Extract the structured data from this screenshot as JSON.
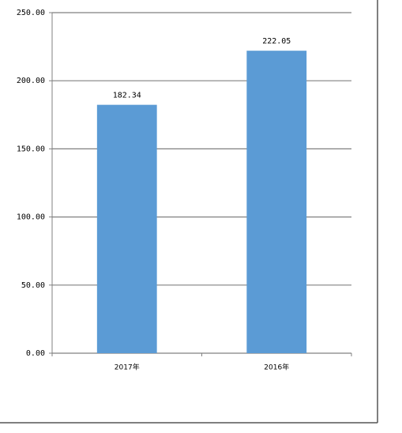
{
  "chart_data": {
    "type": "bar",
    "categories": [
      "2017年",
      "2016年"
    ],
    "values": [
      182.34,
      222.05
    ],
    "color": "#5b9bd5",
    "ylim": [
      0,
      250
    ],
    "yticks": [
      {
        "value": 0,
        "label": "0.00"
      },
      {
        "value": 50,
        "label": "50.00"
      },
      {
        "value": 100,
        "label": "100.00"
      },
      {
        "value": 150,
        "label": "150.00"
      },
      {
        "value": 200,
        "label": "200.00"
      },
      {
        "value": 250,
        "label": "250.00"
      }
    ],
    "grid": true
  }
}
